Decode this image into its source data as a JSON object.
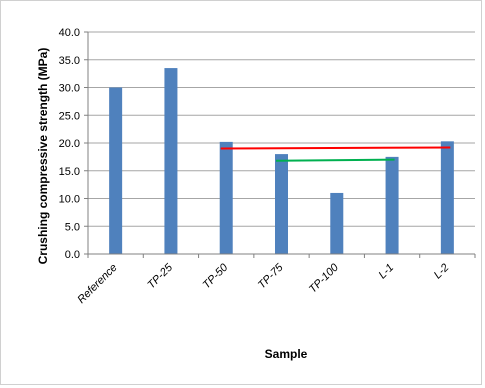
{
  "chart_data": {
    "type": "bar",
    "title": "",
    "xlabel": "Sample",
    "ylabel": "Crushing compressive strength  (MPa)",
    "ylim": [
      0,
      40
    ],
    "yticks": [
      "0.0",
      "5.0",
      "10.0",
      "15.0",
      "20.0",
      "25.0",
      "30.0",
      "35.0",
      "40.0"
    ],
    "categories": [
      "Reference",
      "TP-25",
      "TP-50",
      "TP-75",
      "TP-100",
      "L-1",
      "L-2"
    ],
    "values": [
      30.0,
      33.5,
      20.2,
      18.0,
      11.0,
      17.5,
      20.3
    ],
    "grid": true,
    "legend": "none",
    "bar_color": "#4f81bd",
    "reference_lines": [
      {
        "color": "#ff0000",
        "from_category": "TP-50",
        "to_category": "L-2",
        "y_start": 19.0,
        "y_end": 19.2
      },
      {
        "color": "#00b050",
        "from_category": "TP-75",
        "to_category": "L-1",
        "y_start": 16.8,
        "y_end": 17.0
      }
    ]
  }
}
